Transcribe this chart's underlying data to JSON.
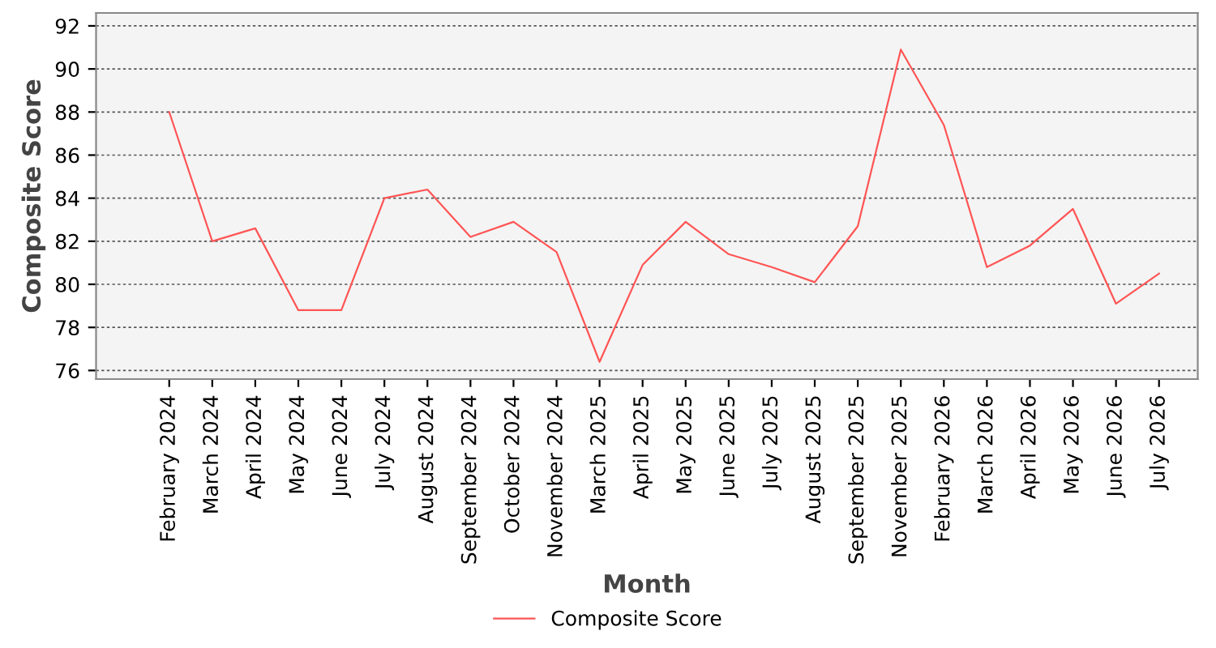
{
  "chart_data": {
    "type": "line",
    "xlabel": "Month",
    "ylabel": "Composite Score",
    "categories": [
      "February 2024",
      "March 2024",
      "April 2024",
      "May 2024",
      "June 2024",
      "July 2024",
      "August 2024",
      "September 2024",
      "October 2024",
      "November 2024",
      "March 2025",
      "April 2025",
      "May 2025",
      "June 2025",
      "July 2025",
      "August 2025",
      "September 2025",
      "November 2025",
      "February 2026",
      "March 2026",
      "April 2026",
      "May 2026",
      "June 2026",
      "July 2026"
    ],
    "series": [
      {
        "name": "Composite Score",
        "color": "#ff5555",
        "values": [
          88.0,
          82.0,
          82.6,
          78.8,
          78.8,
          84.0,
          84.4,
          82.2,
          82.9,
          81.5,
          76.4,
          80.9,
          82.9,
          81.4,
          80.8,
          80.1,
          82.7,
          90.9,
          87.4,
          80.8,
          81.8,
          83.5,
          79.1,
          80.5
        ]
      }
    ],
    "ylim": [
      75.6,
      92.6
    ],
    "yticks": [
      76,
      78,
      80,
      82,
      84,
      86,
      88,
      90,
      92
    ],
    "grid": "y",
    "legend": "bottom",
    "marker": "none",
    "line_style": "solid"
  }
}
